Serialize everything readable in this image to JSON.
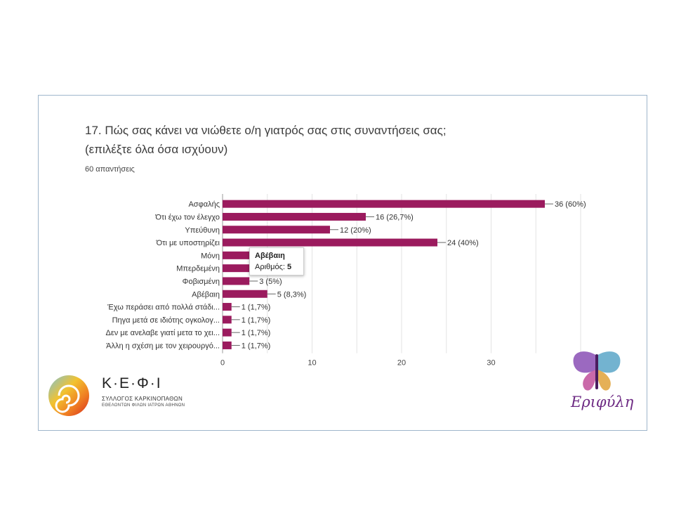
{
  "question": {
    "title_line1": "17. Πώς σας κάνει να νιώθετε ο/η γιατρός σας στις συναντήσεις σας;",
    "title_line2": "(επιλέξτε όλα όσα ισχύουν)",
    "responses": "60 απαντήσεις"
  },
  "colors": {
    "bar": "#9b1b5e",
    "grid": "#e3e3e3"
  },
  "chart_data": {
    "type": "bar",
    "orientation": "horizontal",
    "categories": [
      "Ασφαλής",
      "Ότι έχω τον έλεγχο",
      "Υπεύθυνη",
      "Ότι με υποστηρίζει",
      "Μόνη",
      "Μπερδεμένη",
      "Φοβισμένη",
      "Αβέβαιη",
      "Έχω περάσει από πολλά στάδι...",
      "Πηγα μετά σε ιδιότης ογκολογ...",
      "Δεν με ανελαβε γιατί μετα το χει...",
      "Άλλη η σχέση με τον χειρουργό..."
    ],
    "values": [
      36,
      16,
      12,
      24,
      3,
      3,
      3,
      5,
      1,
      1,
      1,
      1
    ],
    "data_labels": [
      "36 (60%)",
      "16 (26,7%)",
      "12 (20%)",
      "24 (40%)",
      "",
      "",
      "3 (5%)",
      "5 (8,3%)",
      "1 (1,7%)",
      "1 (1,7%)",
      "1 (1,7%)",
      "1 (1,7%)"
    ],
    "xlim": [
      0,
      40
    ],
    "xticks": [
      0,
      10,
      20,
      30
    ],
    "grid": true,
    "tooltip": {
      "title": "Αβέβαιη",
      "label": "Αριθμός:",
      "value": "5"
    }
  },
  "logos": {
    "kefi": {
      "name": "Κ·Ε·Φ·Ι",
      "sub1": "ΣΥΛΛΟΓΟΣ ΚΑΡΚΙΝΟΠΑΘΩΝ",
      "sub2": "ΕΘΕΛΟΝΤΩΝ ΦΙΛΩΝ ΙΑΤΡΩΝ ΑΘΗΝΩΝ"
    },
    "erifyli": {
      "name": "Εριφύλη"
    }
  }
}
